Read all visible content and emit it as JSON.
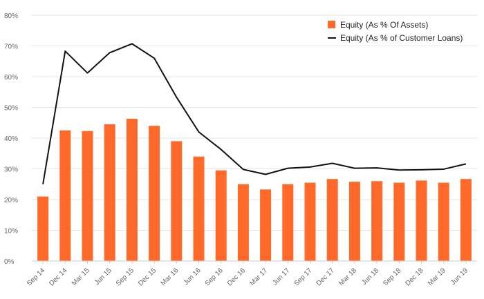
{
  "chart_data": {
    "type": "bar+line",
    "title": "",
    "xlabel": "",
    "ylabel": "",
    "ylim": [
      0,
      80
    ],
    "y_ticks": [
      "0%",
      "10%",
      "20%",
      "30%",
      "40%",
      "50%",
      "60%",
      "70%",
      "80%"
    ],
    "y_tick_values": [
      0,
      10,
      20,
      30,
      40,
      50,
      60,
      70,
      80
    ],
    "grid": true,
    "legend_position": "top-right",
    "categories": [
      "Sep 14",
      "Dec 14",
      "Mar 15",
      "Jun 15",
      "Sep 15",
      "Dec 15",
      "Mar 16",
      "Jun 16",
      "Sep 16",
      "Dec 16",
      "Mar 17",
      "Jun 17",
      "Sep 17",
      "Dec 17",
      "Mar 18",
      "Jun 18",
      "Sep 18",
      "Dec 18",
      "Mar 19",
      "Jun 19"
    ],
    "series": [
      {
        "name": "Equity (As % Of Assets)",
        "kind": "bar",
        "color": "#ff6a2b",
        "values": [
          21.0,
          42.5,
          42.3,
          44.5,
          46.3,
          44.0,
          39.0,
          34.0,
          29.5,
          25.0,
          23.3,
          25.0,
          25.5,
          26.7,
          25.8,
          26.0,
          25.5,
          26.2,
          25.5,
          26.7
        ]
      },
      {
        "name": "Equity (As % of Customer Loans)",
        "kind": "line",
        "color": "#111111",
        "values": [
          25.0,
          68.3,
          61.2,
          67.8,
          70.7,
          66.0,
          53.3,
          42.0,
          36.3,
          29.8,
          28.2,
          30.2,
          30.6,
          31.8,
          30.2,
          30.3,
          29.6,
          29.7,
          29.9,
          31.6
        ]
      }
    ]
  }
}
